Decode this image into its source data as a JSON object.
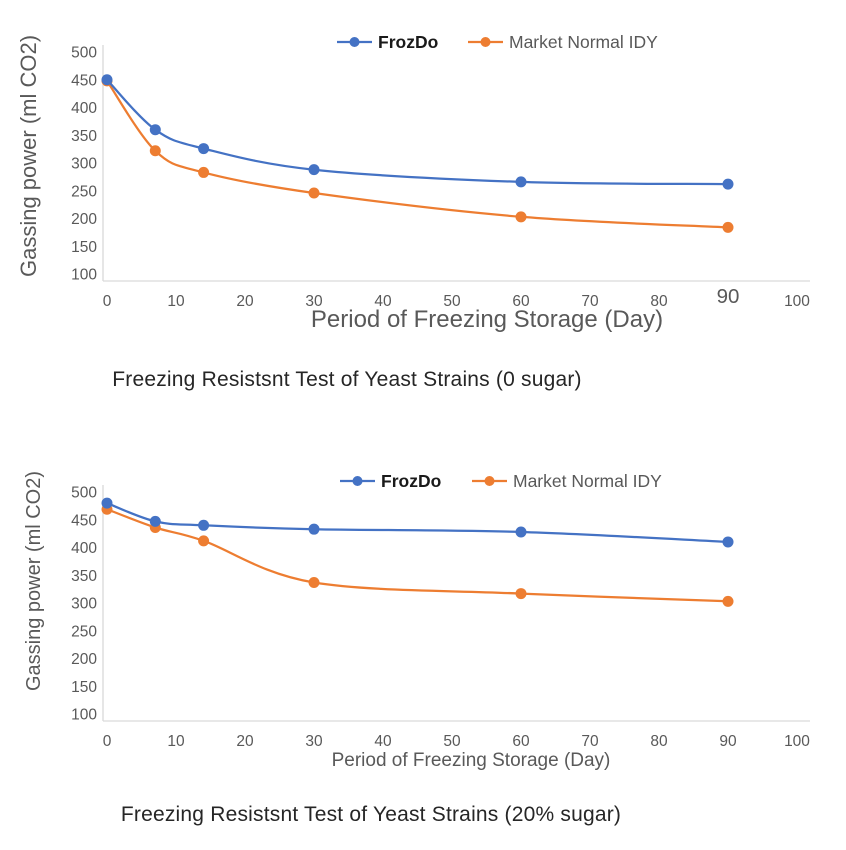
{
  "page": {
    "background": "#ffffff"
  },
  "colors": {
    "frozdo_blue": "#4472C4",
    "market_orange": "#ED7D31",
    "axis_line": "#D9D9D9",
    "tick_text": "#595959",
    "axis_title_text": "#595959",
    "caption_text": "#262626",
    "legend_bold_text": "#1a1a1a"
  },
  "chart_data": [
    {
      "type": "line",
      "title": "Freezing Resistsnt Test of Yeast Strains (0 sugar)",
      "xlabel": "Period of Freezing Storage (Day)",
      "ylabel": "Gassing power (ml CO2)",
      "xlim": [
        0,
        100
      ],
      "ylim": [
        100,
        500
      ],
      "x_ticks": [
        0,
        10,
        20,
        30,
        40,
        50,
        60,
        70,
        80,
        90,
        100
      ],
      "y_ticks": [
        100,
        150,
        200,
        250,
        300,
        350,
        400,
        450,
        500
      ],
      "big_x_tick_label": 90,
      "grid": false,
      "legend_position": "top",
      "smoothed": true,
      "x": [
        0,
        7,
        14,
        30,
        60,
        90
      ],
      "series": [
        {
          "name": "FrozDo",
          "color": "#4472C4",
          "legend_bold": true,
          "values": [
            450,
            360,
            326,
            288,
            266,
            262
          ]
        },
        {
          "name": "Market Normal IDY",
          "color": "#ED7D31",
          "legend_bold": false,
          "values": [
            448,
            322,
            283,
            246,
            203,
            184
          ]
        }
      ]
    },
    {
      "type": "line",
      "title": "Freezing Resistsnt Test of Yeast Strains (20% sugar)",
      "xlabel": "Period of Freezing Storage (Day)",
      "ylabel": "Gassing power (ml CO2)",
      "xlim": [
        0,
        100
      ],
      "ylim": [
        100,
        500
      ],
      "x_ticks": [
        0,
        10,
        20,
        30,
        40,
        50,
        60,
        70,
        80,
        90,
        100
      ],
      "y_ticks": [
        100,
        150,
        200,
        250,
        300,
        350,
        400,
        450,
        500
      ],
      "big_x_tick_label": null,
      "grid": false,
      "legend_position": "top",
      "smoothed": true,
      "x": [
        0,
        7,
        14,
        30,
        60,
        90
      ],
      "series": [
        {
          "name": "FrozDo",
          "color": "#4472C4",
          "legend_bold": true,
          "values": [
            480,
            447,
            440,
            433,
            428,
            410
          ]
        },
        {
          "name": "Market Normal IDY",
          "color": "#ED7D31",
          "legend_bold": false,
          "values": [
            469,
            436,
            412,
            337,
            317,
            303
          ]
        }
      ]
    }
  ]
}
